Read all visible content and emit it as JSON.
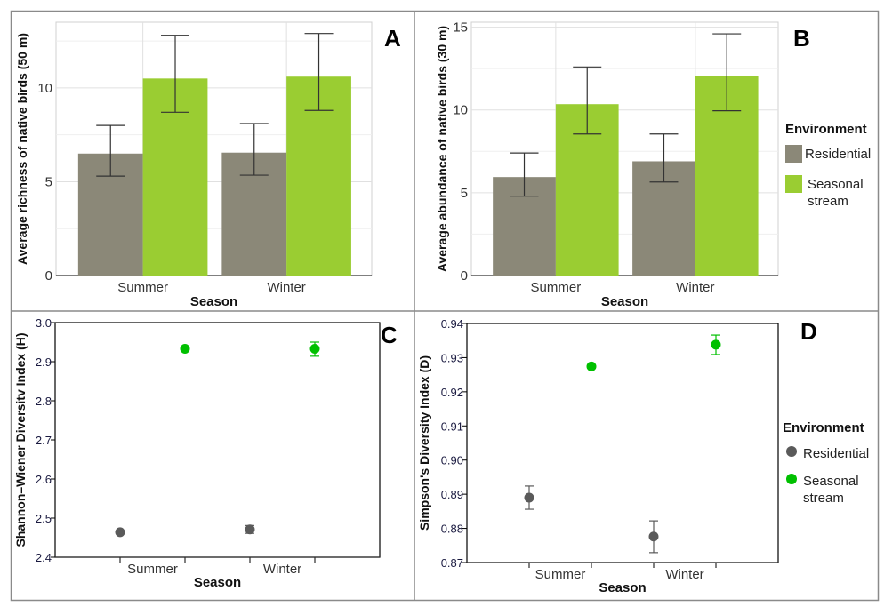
{
  "colors": {
    "residential_bar": "#8b8878",
    "stream_bar": "#9acd32",
    "residential_dot": "#5a5a5a",
    "stream_dot": "#00c000",
    "error_bar": "#333333"
  },
  "legend": {
    "title": "Environment",
    "items": [
      "Residential",
      "Seasonal stream"
    ],
    "item_lines": [
      [
        "Residential"
      ],
      [
        "Seasonal",
        "stream"
      ]
    ]
  },
  "chart_data": [
    {
      "panel": "A",
      "type": "bar",
      "categories": [
        "Summer",
        "Winter"
      ],
      "xlabel": "Season",
      "ylabel": "Average richness of native birds (50 m)",
      "ylim": [
        0,
        13.5
      ],
      "yticks": [
        0,
        5,
        10
      ],
      "yticklabels": [
        "0",
        "5",
        "10"
      ],
      "grid": true,
      "series": [
        {
          "name": "Residential",
          "values": [
            6.5,
            6.55
          ],
          "err_low": [
            5.3,
            5.35
          ],
          "err_high": [
            8.0,
            8.1
          ]
        },
        {
          "name": "Seasonal stream",
          "values": [
            10.5,
            10.6
          ],
          "err_low": [
            8.7,
            8.8
          ],
          "err_high": [
            12.8,
            12.9
          ]
        }
      ]
    },
    {
      "panel": "B",
      "type": "bar",
      "categories": [
        "Summer",
        "Winter"
      ],
      "xlabel": "Season",
      "ylabel": "Average abundance of native birds (30 m)",
      "ylim": [
        0,
        15.3
      ],
      "yticks": [
        0,
        5,
        10,
        15
      ],
      "yticklabels": [
        "0",
        "5",
        "10",
        "15"
      ],
      "grid": true,
      "legend": "right",
      "series": [
        {
          "name": "Residential",
          "values": [
            5.95,
            6.9
          ],
          "err_low": [
            4.8,
            5.65
          ],
          "err_high": [
            7.4,
            8.55
          ]
        },
        {
          "name": "Seasonal stream",
          "values": [
            10.35,
            12.05
          ],
          "err_low": [
            8.55,
            9.95
          ],
          "err_high": [
            12.6,
            14.6
          ]
        }
      ]
    },
    {
      "panel": "C",
      "type": "scatter",
      "categories": [
        "Summer",
        "Winter"
      ],
      "xlabel": "Season",
      "ylabel": "Shannon–Wiener Diversitv Index (H)",
      "ylim": [
        2.4,
        3.0
      ],
      "yticks": [
        2.4,
        2.5,
        2.6,
        2.7,
        2.8,
        2.9,
        3.0
      ],
      "yticklabels": [
        "2.4",
        "2.5",
        "2.6",
        "2.7",
        "2.8",
        "2.9",
        "3.0"
      ],
      "grid": false,
      "series": [
        {
          "name": "Residential",
          "values": [
            2.464,
            2.471
          ],
          "err_low": [
            2.461,
            2.461
          ],
          "err_high": [
            2.467,
            2.481
          ]
        },
        {
          "name": "Seasonal stream",
          "values": [
            2.933,
            2.933
          ],
          "err_low": [
            2.929,
            2.914
          ],
          "err_high": [
            2.937,
            2.95
          ]
        }
      ]
    },
    {
      "panel": "D",
      "type": "scatter",
      "categories": [
        "Summer",
        "Winter"
      ],
      "xlabel": "Season",
      "ylabel": "Simpson's Diversity Index (D)",
      "ylim": [
        0.87,
        0.94
      ],
      "yticks": [
        0.87,
        0.88,
        0.89,
        0.9,
        0.91,
        0.92,
        0.93,
        0.94
      ],
      "yticklabels": [
        "0.87",
        "0.88",
        "0.89",
        "0.90",
        "0.91",
        "0.92",
        "0.93",
        "0.94"
      ],
      "grid": false,
      "legend": "right",
      "series": [
        {
          "name": "Residential",
          "values": [
            0.889,
            0.8776
          ],
          "err_low": [
            0.8856,
            0.8729
          ],
          "err_high": [
            0.8924,
            0.8822
          ]
        },
        {
          "name": "Seasonal stream",
          "values": [
            0.9274,
            0.9338
          ],
          "err_low": [
            0.9269,
            0.9309
          ],
          "err_high": [
            0.9279,
            0.9366
          ]
        }
      ]
    }
  ]
}
